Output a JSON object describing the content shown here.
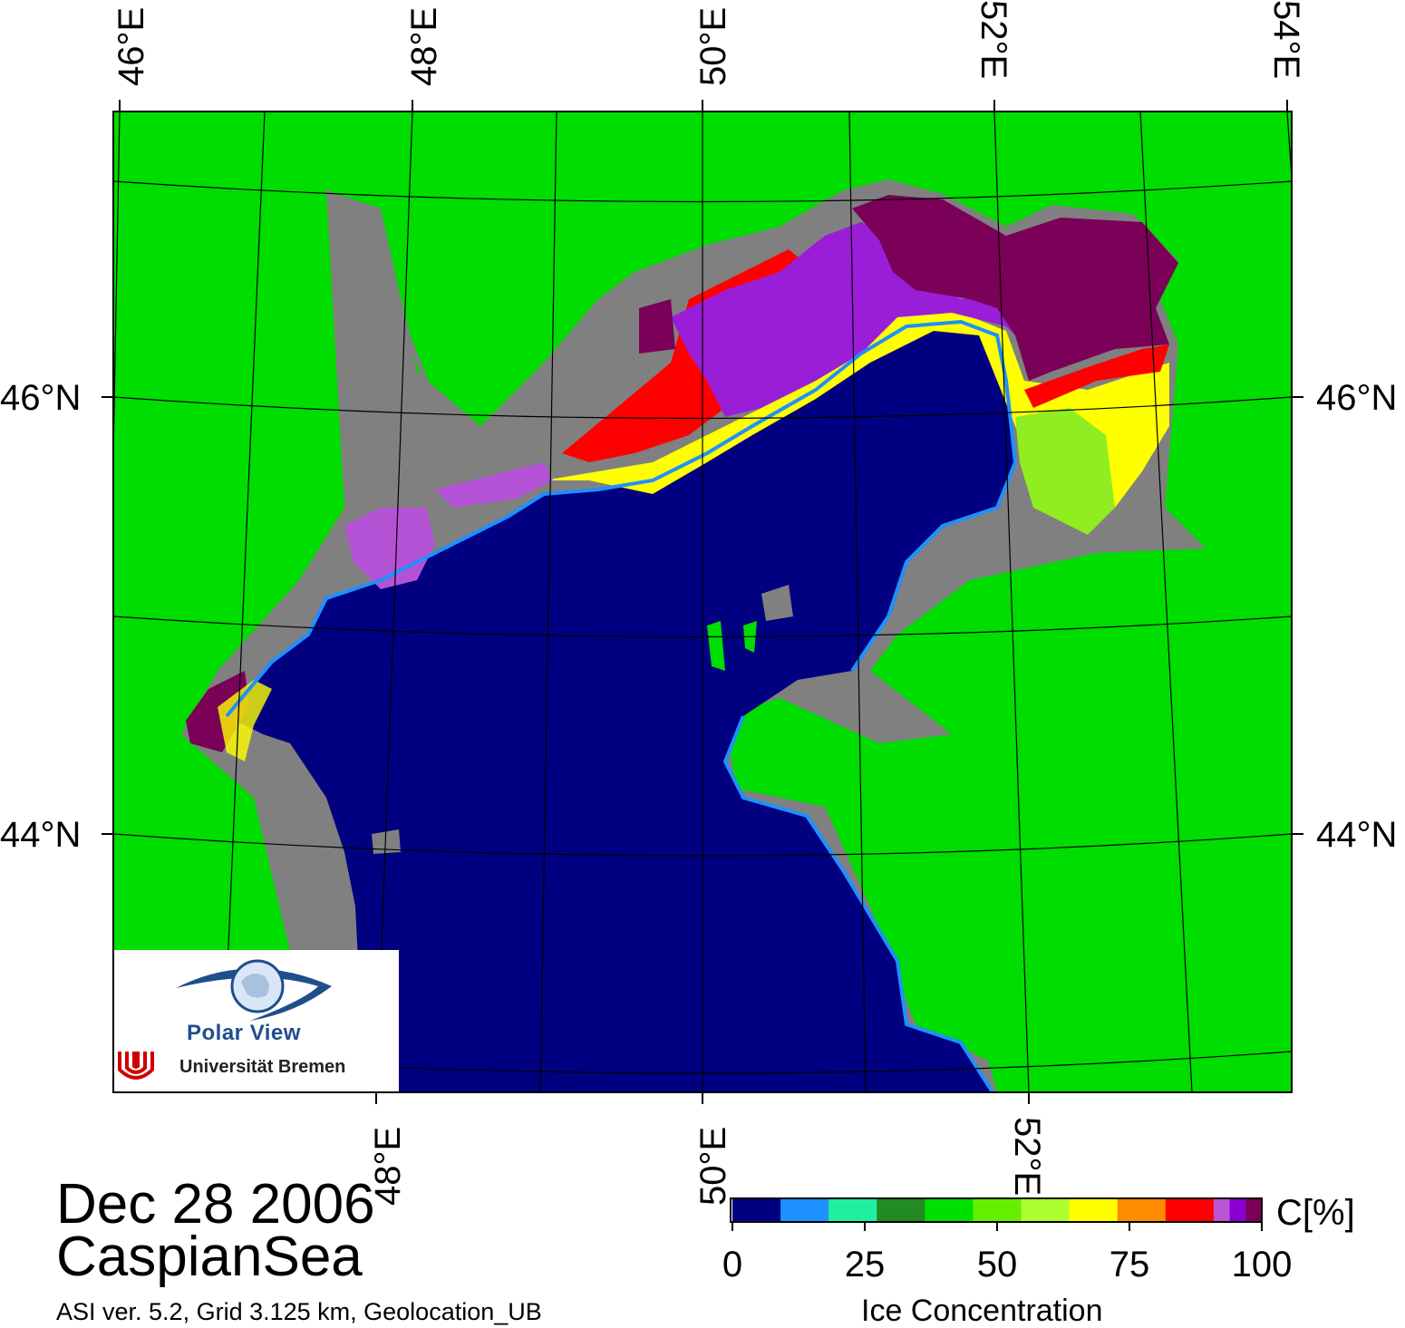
{
  "map": {
    "date_label": "Dec 28 2006",
    "region_label": "CaspianSea",
    "footer": "ASI ver. 5.2,  Grid 3.125 km, Geolocation_UB",
    "top_lon_labels": [
      "46°E",
      "48°E",
      "50°E",
      "52°E",
      "54°E"
    ],
    "bottom_lon_labels": [
      "48°E",
      "50°E",
      "52°E"
    ],
    "lat_labels": [
      "46°N",
      "44°N"
    ],
    "colors": {
      "land": "#00dd00",
      "water": "#000080",
      "coast": "#808080",
      "ice_high": "#7a0058"
    }
  },
  "logo": {
    "title": "Polar View",
    "university": "Universität Bremen"
  },
  "colorbar": {
    "title": "Ice Concentration",
    "unit": "C[%]",
    "tick_labels": [
      "0",
      "25",
      "50",
      "75",
      "100"
    ],
    "colors": [
      "#000080",
      "#1e90ff",
      "#1ef0a0",
      "#228b22",
      "#00e000",
      "#66ee00",
      "#adff2f",
      "#ffff00",
      "#ff8c00",
      "#ff0000",
      "#ba55d3",
      "#8a00d4",
      "#7a0058"
    ]
  }
}
